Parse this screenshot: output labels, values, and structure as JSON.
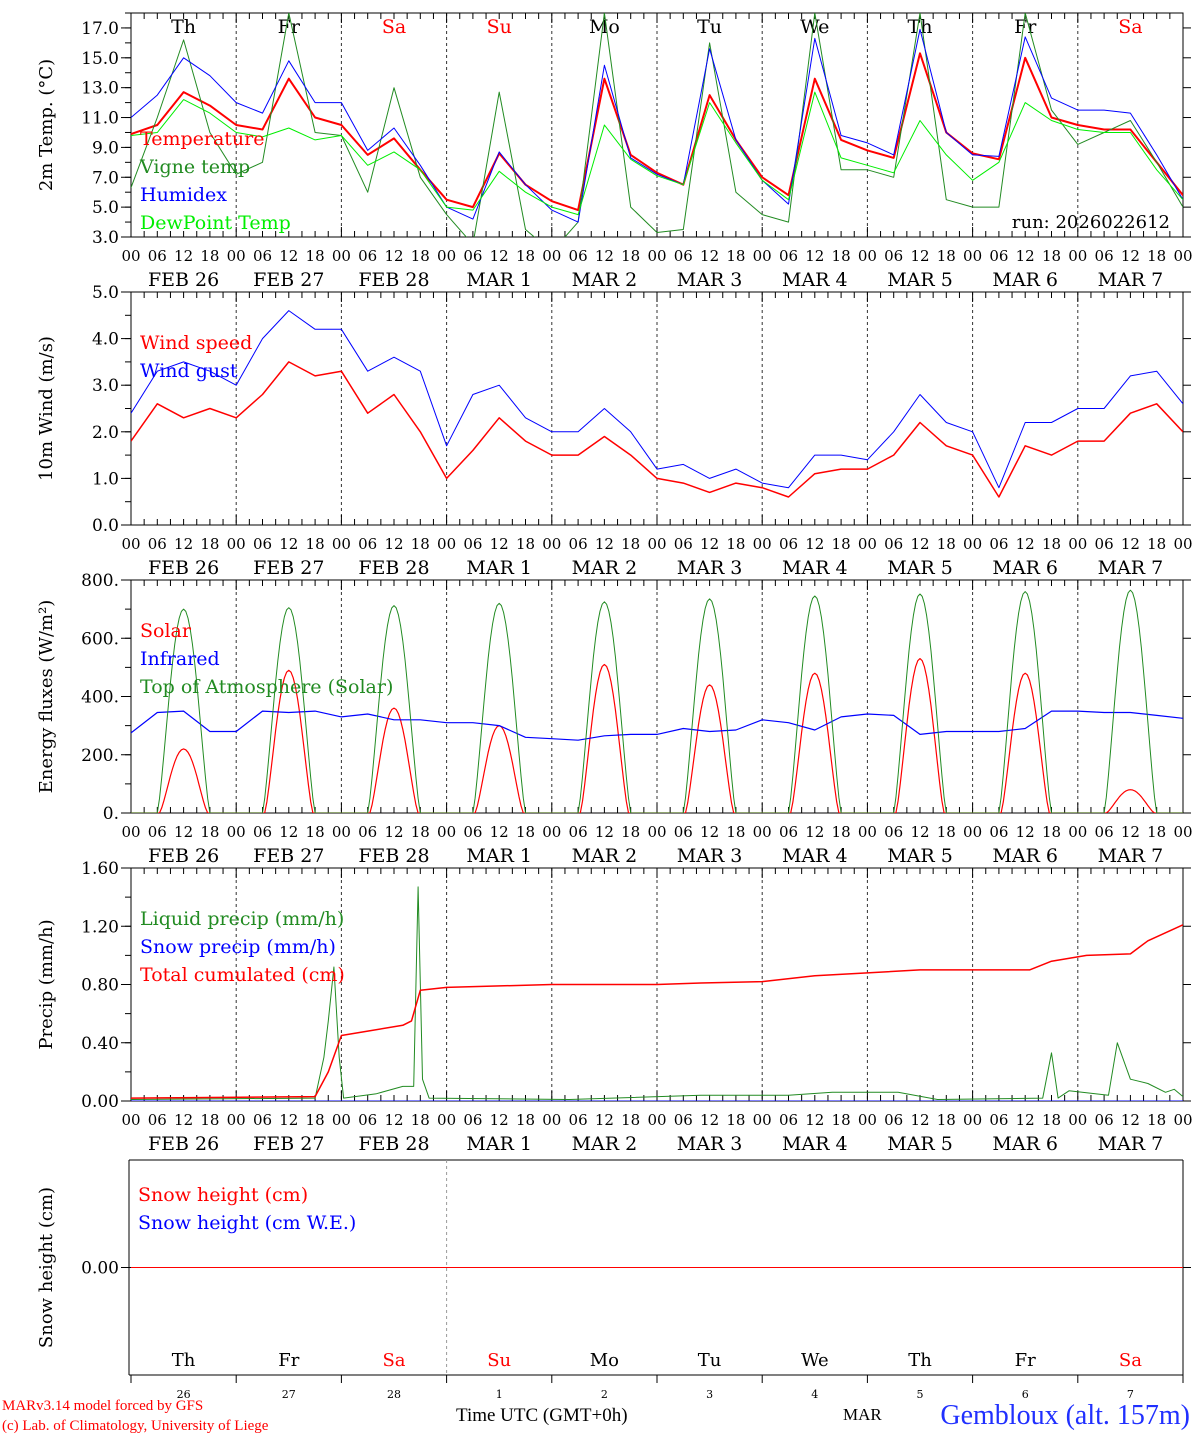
{
  "days": [
    {
      "name": "Th",
      "color": "#000000",
      "month": "FEB",
      "date": "26"
    },
    {
      "name": "Fr",
      "color": "#000000",
      "month": "FEB",
      "date": "27"
    },
    {
      "name": "Sa",
      "color": "#ff0000",
      "month": "FEB",
      "date": "28"
    },
    {
      "name": "Su",
      "color": "#ff0000",
      "month": "MAR",
      "date": "1"
    },
    {
      "name": "Mo",
      "color": "#000000",
      "month": "MAR",
      "date": "2"
    },
    {
      "name": "Tu",
      "color": "#000000",
      "month": "MAR",
      "date": "3"
    },
    {
      "name": "We",
      "color": "#000000",
      "month": "MAR",
      "date": "4"
    },
    {
      "name": "Th",
      "color": "#000000",
      "month": "MAR",
      "date": "5"
    },
    {
      "name": "Fr",
      "color": "#000000",
      "month": "MAR",
      "date": "6"
    },
    {
      "name": "Sa",
      "color": "#ff0000",
      "month": "MAR",
      "date": "7"
    }
  ],
  "hour_ticks": [
    "00",
    "06",
    "12",
    "18"
  ],
  "chart_data": [
    {
      "type": "line",
      "id": "temp",
      "ylabel": "2m Temp. (°C)",
      "ylim": [
        3,
        18
      ],
      "yticks": [
        3,
        5,
        7,
        9,
        11,
        13,
        15,
        17
      ],
      "ytick_labels": [
        "3.0",
        "5.0",
        "7.0",
        "9.0",
        "11.0",
        "13.0",
        "15.0",
        "17.0"
      ],
      "x_unit": "hours since FEB 26 00 UTC",
      "xlim": [
        0,
        240
      ],
      "annotation": "run: 2026022612",
      "series": [
        {
          "name": "Temperature",
          "color": "#ff0000",
          "width": 2,
          "step": 6,
          "values": [
            9.9,
            10.5,
            12.7,
            11.8,
            10.5,
            10.2,
            13.6,
            11.0,
            10.5,
            8.5,
            9.6,
            7.5,
            5.5,
            5.0,
            8.6,
            6.5,
            5.4,
            4.8,
            13.6,
            8.5,
            7.3,
            6.5,
            12.5,
            9.5,
            7.0,
            5.8,
            13.6,
            9.5,
            8.8,
            8.3,
            15.3,
            10.0,
            8.6,
            8.2,
            15.0,
            11.0,
            10.5,
            10.2,
            10.2,
            8.0,
            5.8
          ]
        },
        {
          "name": "Vigne temp",
          "color": "#228b22",
          "width": 1,
          "step": 6,
          "values": [
            6.3,
            11,
            16.2,
            10,
            7.2,
            8,
            18,
            10,
            9.8,
            6,
            13,
            7,
            4.5,
            2.5,
            12.7,
            3.5,
            2,
            4,
            18,
            5,
            3.3,
            3.5,
            16,
            6,
            4.5,
            4,
            18,
            7.5,
            7.5,
            7,
            18,
            5.5,
            5,
            5,
            18,
            11.5,
            9.2,
            10,
            10.8,
            8,
            5
          ]
        },
        {
          "name": "Humidex",
          "color": "#0000ff",
          "width": 1,
          "step": 6,
          "values": [
            11.0,
            12.5,
            15.0,
            13.8,
            12.0,
            11.3,
            14.8,
            12.0,
            12.0,
            8.8,
            10.3,
            7.8,
            5.0,
            4.2,
            8.7,
            6.5,
            4.8,
            4.0,
            14.5,
            8.3,
            7.2,
            6.5,
            15.6,
            9.5,
            6.8,
            5.2,
            16.3,
            9.8,
            9.3,
            8.5,
            16.9,
            10.0,
            8.5,
            8.4,
            16.4,
            12.3,
            11.5,
            11.5,
            11.3,
            8.5,
            5.5
          ]
        },
        {
          "name": "DewPoint Temp",
          "color": "#00ee00",
          "width": 1,
          "step": 6,
          "values": [
            9.8,
            10,
            12.2,
            11.3,
            10,
            9.7,
            10.3,
            9.5,
            9.8,
            7.8,
            8.7,
            7.5,
            5,
            4.8,
            7.4,
            6,
            5,
            4.5,
            10.5,
            8.2,
            7.1,
            6.5,
            12,
            9.3,
            6.8,
            5.5,
            12.7,
            8.3,
            7.8,
            7.3,
            10.8,
            8.5,
            6.8,
            8,
            12,
            10.8,
            10.2,
            10,
            10,
            7.5,
            5.5
          ]
        }
      ]
    },
    {
      "type": "line",
      "id": "wind",
      "ylabel": "10m Wind (m/s)",
      "ylim": [
        0,
        5
      ],
      "yticks": [
        0,
        1,
        2,
        3,
        4,
        5
      ],
      "ytick_labels": [
        "0.0",
        "1.0",
        "2.0",
        "3.0",
        "4.0",
        "5.0"
      ],
      "xlim": [
        0,
        240
      ],
      "series": [
        {
          "name": "Wind speed",
          "color": "#ff0000",
          "width": 1.5,
          "step": 6,
          "values": [
            1.8,
            2.6,
            2.3,
            2.5,
            2.3,
            2.8,
            3.5,
            3.2,
            3.3,
            2.4,
            2.8,
            2.0,
            1.0,
            1.6,
            2.3,
            1.8,
            1.5,
            1.5,
            1.9,
            1.5,
            1.0,
            0.9,
            0.7,
            0.9,
            0.8,
            0.6,
            1.1,
            1.2,
            1.2,
            1.5,
            2.2,
            1.7,
            1.5,
            0.6,
            1.7,
            1.5,
            1.8,
            1.8,
            2.4,
            2.6,
            2.0
          ]
        },
        {
          "name": "Wind gust",
          "color": "#0000ff",
          "width": 1,
          "step": 6,
          "values": [
            2.4,
            3.3,
            3.5,
            3.3,
            3.0,
            4.0,
            4.6,
            4.2,
            4.2,
            3.3,
            3.6,
            3.3,
            1.7,
            2.8,
            3.0,
            2.3,
            2.0,
            2.0,
            2.5,
            2.0,
            1.2,
            1.3,
            1.0,
            1.2,
            0.9,
            0.8,
            1.5,
            1.5,
            1.4,
            2.0,
            2.8,
            2.2,
            2.0,
            0.8,
            2.2,
            2.2,
            2.5,
            2.5,
            3.2,
            3.3,
            2.6
          ]
        }
      ]
    },
    {
      "type": "line",
      "id": "energy",
      "ylabel": "Energy fluxes (W/m²)",
      "ylim": [
        0,
        800
      ],
      "yticks": [
        0,
        200,
        400,
        600,
        800
      ],
      "ytick_labels": [
        "0.",
        "200.",
        "400.",
        "600.",
        "800."
      ],
      "xlim": [
        0,
        240
      ],
      "series": [
        {
          "name": "Solar",
          "color": "#ff0000",
          "width": 1.2,
          "daylight_hours": [
            6.5,
            17.5
          ],
          "daily_peaks": [
            220,
            490,
            360,
            300,
            510,
            440,
            480,
            530,
            480,
            80
          ]
        },
        {
          "name": "Infrared",
          "color": "#0000ff",
          "width": 1.2,
          "step": 6,
          "values": [
            275,
            345,
            350,
            280,
            280,
            350,
            345,
            350,
            330,
            340,
            320,
            320,
            310,
            310,
            300,
            260,
            255,
            250,
            265,
            270,
            270,
            290,
            280,
            285,
            320,
            310,
            285,
            330,
            340,
            335,
            270,
            280,
            280,
            280,
            290,
            350,
            350,
            345,
            345,
            335,
            325
          ]
        },
        {
          "name": "Top of Atmosphere (Solar)",
          "color": "#228b22",
          "width": 1,
          "daylight_hours": [
            6,
            18
          ],
          "daily_peaks": [
            700,
            705,
            712,
            720,
            725,
            735,
            745,
            752,
            760,
            765
          ]
        }
      ]
    },
    {
      "type": "line",
      "id": "precip",
      "ylabel": "Precip (mm/h)",
      "ylim": [
        0,
        1.6
      ],
      "yticks": [
        0,
        0.4,
        0.8,
        1.2,
        1.6
      ],
      "ytick_labels": [
        "0.00",
        "0.40",
        "0.80",
        "1.20",
        "1.60"
      ],
      "xlim": [
        0,
        240
      ],
      "series": [
        {
          "name": "Liquid precip (mm/h)",
          "color": "#228b22",
          "width": 1,
          "points": [
            [
              0,
              0.01
            ],
            [
              42,
              0.02
            ],
            [
              44,
              0.3
            ],
            [
              45,
              0.55
            ],
            [
              46.3,
              0.92
            ],
            [
              47.5,
              0.3
            ],
            [
              48.5,
              0.02
            ],
            [
              56,
              0.05
            ],
            [
              62,
              0.1
            ],
            [
              64.5,
              0.1
            ],
            [
              65.5,
              1.47
            ],
            [
              66.5,
              0.15
            ],
            [
              68,
              0.02
            ],
            [
              100,
              0.01
            ],
            [
              130,
              0.04
            ],
            [
              150,
              0.04
            ],
            [
              160,
              0.06
            ],
            [
              175,
              0.06
            ],
            [
              184,
              0.01
            ],
            [
              208,
              0.02
            ],
            [
              210,
              0.33
            ],
            [
              211.5,
              0.02
            ],
            [
              214,
              0.07
            ],
            [
              220,
              0.05
            ],
            [
              223,
              0.04
            ],
            [
              225,
              0.4
            ],
            [
              228,
              0.15
            ],
            [
              232,
              0.12
            ],
            [
              236,
              0.06
            ],
            [
              238,
              0.08
            ],
            [
              240,
              0.03
            ]
          ]
        },
        {
          "name": "Snow precip (mm/h)",
          "color": "#0000ff",
          "width": 1,
          "points": [
            [
              0,
              0
            ],
            [
              240,
              0
            ]
          ]
        },
        {
          "name": "Total cumulated (cm)",
          "color": "#ff0000",
          "width": 1.5,
          "points": [
            [
              0,
              0.02
            ],
            [
              42,
              0.03
            ],
            [
              45,
              0.2
            ],
            [
              48,
              0.45
            ],
            [
              54,
              0.48
            ],
            [
              62,
              0.52
            ],
            [
              64,
              0.55
            ],
            [
              66,
              0.76
            ],
            [
              72,
              0.78
            ],
            [
              96,
              0.8
            ],
            [
              120,
              0.8
            ],
            [
              130,
              0.81
            ],
            [
              144,
              0.82
            ],
            [
              156,
              0.86
            ],
            [
              168,
              0.88
            ],
            [
              180,
              0.9
            ],
            [
              205,
              0.9
            ],
            [
              210,
              0.96
            ],
            [
              218,
              1.0
            ],
            [
              228,
              1.01
            ],
            [
              232,
              1.1
            ],
            [
              240,
              1.21
            ]
          ]
        }
      ]
    },
    {
      "type": "line",
      "id": "snow",
      "ylabel": "Snow height (cm)",
      "ylim": [
        -1,
        1
      ],
      "yticks": [
        0
      ],
      "ytick_labels": [
        "0.00"
      ],
      "xlim": [
        0,
        240
      ],
      "series": [
        {
          "name": "Snow height (cm)",
          "color": "#ff0000",
          "width": 1,
          "points": [
            [
              0,
              0
            ],
            [
              240,
              0
            ]
          ]
        },
        {
          "name": "Snow height (cm W.E.)",
          "color": "#0000ff",
          "width": 0,
          "points": []
        }
      ]
    }
  ],
  "footer": {
    "model": "MARv3.14 model forced by GFS",
    "credit": "(c) Lab. of Climatology, University of Liege",
    "xlabel": "Time UTC (GMT+0h)",
    "month": "MAR",
    "station": "Gembloux (alt. 157m)"
  }
}
